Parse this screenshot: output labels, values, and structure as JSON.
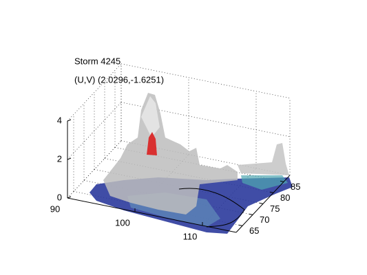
{
  "chart_data": {
    "type": "surface3d",
    "title": "Storm 4245",
    "subtitle": "(U,V) (2.0296,-1.6251)",
    "xlim": [
      90,
      115
    ],
    "xticks": [
      90,
      100,
      110
    ],
    "ylim": [
      62,
      88
    ],
    "yticks": [
      65,
      70,
      75,
      80,
      85
    ],
    "zlim": [
      0,
      4
    ],
    "zticks": [
      0,
      2,
      4
    ],
    "grid": true
  }
}
